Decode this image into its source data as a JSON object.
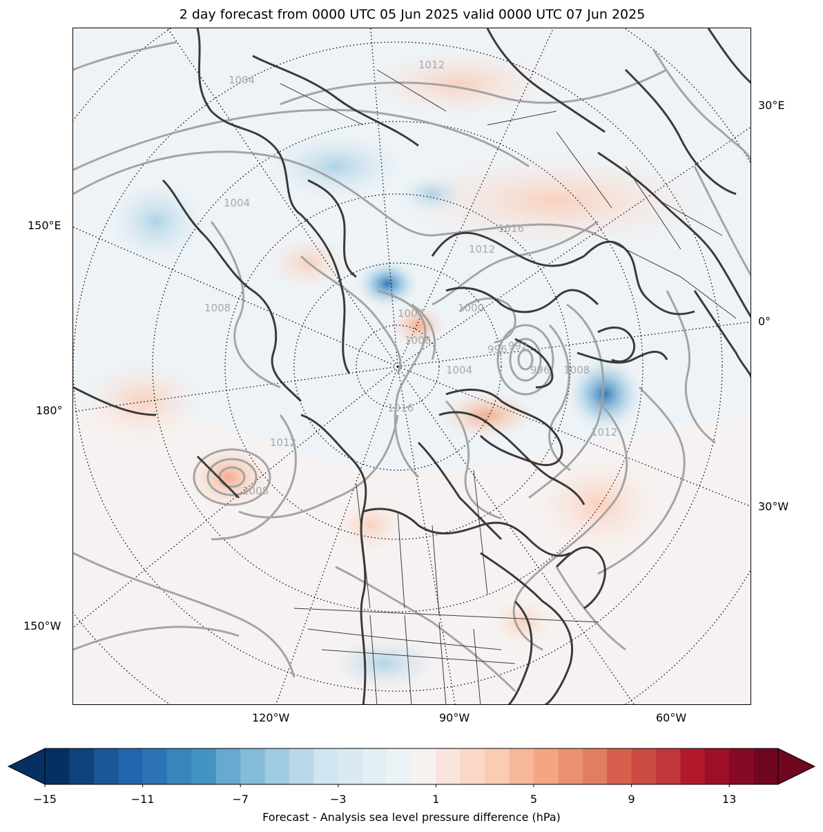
{
  "title": "2 day forecast from 0000 UTC 05 Jun 2025 valid 0000 UTC 07 Jun 2025",
  "map": {
    "projection": "north polar stereographic",
    "lon_labels_right": [
      "30°E",
      "0°",
      "30°W"
    ],
    "lon_labels_left": [
      "150°E",
      "180°",
      "150°W"
    ],
    "lon_labels_bottom": [
      "120°W",
      "90°W",
      "60°W"
    ],
    "isobar_labels": [
      "1004",
      "1004",
      "1008",
      "1008",
      "1012",
      "1016",
      "1000",
      "996",
      "992",
      "996",
      "1004",
      "1008",
      "1012",
      "1016",
      "1008",
      "1012",
      "1008",
      "1012"
    ],
    "colors": {
      "ocean_fill": "#eef3f7",
      "coast": "#3a3a3a",
      "isobar": "#a0a0a0",
      "positive": "#f4a582",
      "negative": "#4393c3"
    }
  },
  "colorbar": {
    "label": "Forecast - Analysis sea level pressure difference (hPa)",
    "ticks": [
      "−15",
      "−11",
      "−7",
      "−3",
      "1",
      "5",
      "9",
      "13"
    ],
    "levels": [
      -15,
      -14,
      -13,
      -12,
      -11,
      -10,
      -9,
      -8,
      -7,
      -6,
      -5,
      -4,
      -3,
      -2,
      -1,
      0,
      1,
      2,
      3,
      4,
      5,
      6,
      7,
      8,
      9,
      10,
      11,
      12,
      13,
      14,
      15
    ],
    "colors": [
      "#053061",
      "#0f437b",
      "#1a5796",
      "#2166ac",
      "#2c74b5",
      "#3885bc",
      "#4393c3",
      "#67a9cf",
      "#84bcda",
      "#a0cbe2",
      "#bbd8e9",
      "#d1e5f0",
      "#dae9f2",
      "#e4eef5",
      "#edf2f7",
      "#f6f2ef",
      "#f9e5de",
      "#fbd7c8",
      "#fbcbb4",
      "#f7b799",
      "#f4a582",
      "#eb9173",
      "#e27d63",
      "#d6604d",
      "#cb4a42",
      "#c13639",
      "#b2182b",
      "#9d0f28",
      "#870a25",
      "#6f0721"
    ],
    "extend": "both"
  }
}
